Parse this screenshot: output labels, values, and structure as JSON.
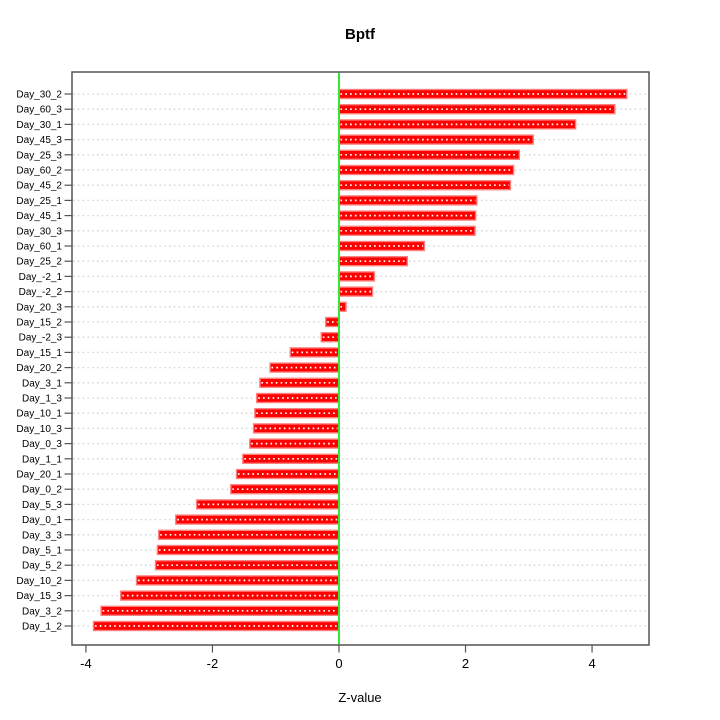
{
  "page": {
    "title": "Bptf",
    "xlabel": "Z-value"
  },
  "chart_data": {
    "type": "bar",
    "orientation": "horizontal",
    "title": "Bptf",
    "xlabel": "Z-value",
    "ylabel": "",
    "legend": "none",
    "grid": "dotted horizontal line per category",
    "xlim": [
      -4.22,
      4.9
    ],
    "x_ticks": [
      -4,
      -2,
      0,
      2,
      4
    ],
    "zero_reference_line": 0,
    "categories": [
      "Day_30_2",
      "Day_60_3",
      "Day_30_1",
      "Day_45_3",
      "Day_25_3",
      "Day_60_2",
      "Day_45_2",
      "Day_25_1",
      "Day_45_1",
      "Day_30_3",
      "Day_60_1",
      "Day_25_2",
      "Day_-2_1",
      "Day_-2_2",
      "Day_20_3",
      "Day_15_2",
      "Day_-2_3",
      "Day_15_1",
      "Day_20_2",
      "Day_3_1",
      "Day_1_3",
      "Day_10_1",
      "Day_10_3",
      "Day_0_3",
      "Day_1_1",
      "Day_20_1",
      "Day_0_2",
      "Day_5_3",
      "Day_0_1",
      "Day_3_3",
      "Day_5_1",
      "Day_5_2",
      "Day_10_2",
      "Day_15_3",
      "Day_3_2",
      "Day_1_2"
    ],
    "values": [
      4.55,
      4.36,
      3.74,
      3.07,
      2.85,
      2.76,
      2.71,
      2.18,
      2.16,
      2.15,
      1.35,
      1.08,
      0.56,
      0.53,
      0.11,
      -0.21,
      -0.28,
      -0.77,
      -1.09,
      -1.25,
      -1.3,
      -1.33,
      -1.35,
      -1.41,
      -1.52,
      -1.62,
      -1.71,
      -2.25,
      -2.58,
      -2.85,
      -2.87,
      -2.9,
      -3.2,
      -3.45,
      -3.76,
      -3.88
    ],
    "colors": {
      "bar_fill": "#ff0000",
      "bar_edge": "#ff8080",
      "bar_inner_dash": "#ffffff",
      "zero_line": "#33e633",
      "grid": "#d4d4d4",
      "frame": "#545454",
      "text": "#000000"
    }
  }
}
